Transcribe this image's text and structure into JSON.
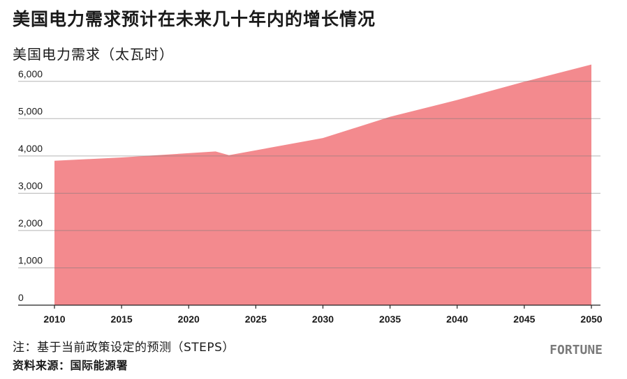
{
  "chart_data": {
    "type": "area",
    "title": "美国电力需求预计在未来几十年内的增长情况",
    "ylabel": "美国电力需求（太瓦时）",
    "xlabel": "",
    "x": [
      2010,
      2015,
      2022,
      2023,
      2030,
      2035,
      2040,
      2045,
      2050
    ],
    "series": [
      {
        "values": [
          3870,
          3960,
          4120,
          4020,
          4480,
          5050,
          5500,
          5990,
          6450
        ]
      }
    ],
    "xlim": [
      2010,
      2050
    ],
    "ylim": [
      0,
      6500
    ],
    "x_ticks": [
      2010,
      2015,
      2020,
      2025,
      2030,
      2035,
      2040,
      2045,
      2050
    ],
    "x_tick_labels": [
      "2010",
      "2015",
      "2020",
      "2025",
      "2030",
      "2035",
      "2040",
      "2045",
      "2050"
    ],
    "y_ticks": [
      0,
      1000,
      2000,
      3000,
      4000,
      5000,
      6000
    ],
    "y_tick_labels": [
      "0",
      "1,000",
      "2,000",
      "3,000",
      "4,000",
      "5,000",
      "6,000"
    ],
    "grid": true,
    "area_color": "#f38a8e"
  },
  "footer": {
    "note": "注：基于当前政策设定的预测（STEPS）",
    "source": "资料来源：国际能源署",
    "logo": "FORTUNE"
  }
}
